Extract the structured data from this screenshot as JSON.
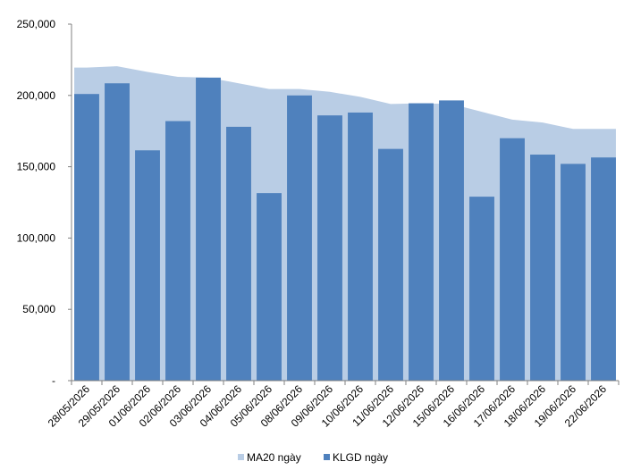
{
  "chart_data": {
    "type": "bar",
    "title": "",
    "xlabel": "",
    "ylabel": "",
    "ylim": [
      0,
      250000
    ],
    "yticks": [
      0,
      50000,
      100000,
      150000,
      200000,
      250000
    ],
    "ytick_labels": [
      "-",
      "50,000",
      "100,000",
      "150,000",
      "200,000",
      "250,000"
    ],
    "grid": false,
    "legend_position": "bottom",
    "categories": [
      "28/05/2026",
      "29/05/2026",
      "01/06/2026",
      "02/06/2026",
      "03/06/2026",
      "04/06/2026",
      "05/06/2026",
      "08/06/2026",
      "09/06/2026",
      "10/06/2026",
      "11/06/2026",
      "12/06/2026",
      "15/06/2026",
      "16/06/2026",
      "17/06/2026",
      "18/06/2026",
      "19/06/2026",
      "22/06/2026"
    ],
    "series": [
      {
        "name": "MA20 ngày",
        "type": "area",
        "color": "#b9cde5",
        "values": [
          219500,
          220500,
          216500,
          213000,
          212500,
          208500,
          204500,
          204500,
          202500,
          199000,
          194000,
          194500,
          194000,
          188500,
          183000,
          181000,
          176500,
          176500
        ]
      },
      {
        "name": "KLGD ngày",
        "type": "bar",
        "color": "#4f81bd",
        "values": [
          201000,
          208500,
          161500,
          182000,
          212500,
          178000,
          131500,
          200000,
          186000,
          188000,
          162500,
          194500,
          196500,
          129000,
          170000,
          158500,
          152000,
          156500
        ]
      }
    ]
  }
}
